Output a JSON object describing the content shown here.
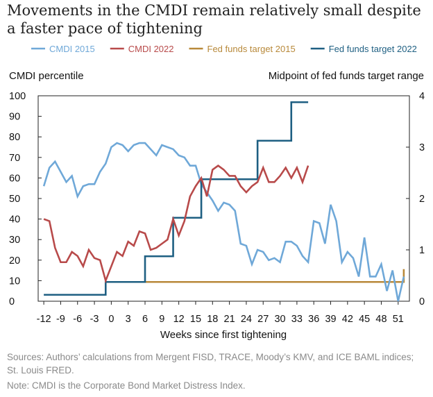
{
  "title": "Movements in the CMDI remain relatively small despite a faster pace of tightening",
  "footer": {
    "sources": "Sources: Authors’ calculations from Mergent FISD, TRACE, Moody’s KMV, and ICE BAML indices; St. Louis FRED.",
    "note": "Note: CMDI is the Corporate Bond Market Distress Index."
  },
  "chart_data": {
    "type": "line",
    "title": "Movements in the CMDI remain relatively small despite a faster pace of tightening",
    "xlabel": "Weeks since first tightening",
    "ylabel_left": "CMDI percentile",
    "ylabel_right": "Midpoint of fed funds target range",
    "xlim": [
      -13,
      53
    ],
    "ylim_left": [
      0,
      100
    ],
    "ylim_right": [
      0,
      4
    ],
    "x_ticks": [
      -12,
      -9,
      -6,
      -3,
      0,
      3,
      6,
      9,
      12,
      15,
      18,
      21,
      24,
      27,
      30,
      33,
      36,
      39,
      42,
      45,
      48,
      51
    ],
    "y_ticks_left": [
      0,
      10,
      20,
      30,
      40,
      50,
      60,
      70,
      80,
      90,
      100
    ],
    "y_ticks_right": [
      0,
      1,
      2,
      3,
      4
    ],
    "grid": false,
    "legend_position": "top",
    "series": [
      {
        "name": "CMDI 2015",
        "axis": "left",
        "color": "#6fa8d8",
        "step": false,
        "x": [
          -12,
          -11,
          -10,
          -9,
          -8,
          -7,
          -6,
          -5,
          -4,
          -3,
          -2,
          -1,
          0,
          1,
          2,
          3,
          4,
          5,
          6,
          7,
          8,
          9,
          10,
          11,
          12,
          13,
          14,
          15,
          16,
          17,
          18,
          19,
          20,
          21,
          22,
          23,
          24,
          25,
          26,
          27,
          28,
          29,
          30,
          31,
          32,
          33,
          34,
          35,
          36,
          37,
          38,
          39,
          40,
          41,
          42,
          43,
          44,
          45,
          46,
          47,
          48,
          49,
          50,
          51,
          52
        ],
        "y": [
          56,
          65,
          68,
          63,
          58,
          61,
          51,
          56,
          57,
          57,
          63,
          67,
          75,
          77,
          76,
          73,
          76,
          77,
          77,
          74,
          71,
          76,
          75,
          74,
          71,
          70,
          66,
          66,
          57,
          53,
          49,
          44,
          48,
          47,
          44,
          28,
          27,
          18,
          25,
          24,
          20,
          21,
          19,
          29,
          29,
          27,
          22,
          19,
          39,
          38,
          28,
          47,
          39,
          19,
          24,
          21,
          12,
          31,
          12,
          12,
          18,
          5,
          15,
          0,
          12
        ]
      },
      {
        "name": "CMDI 2022",
        "axis": "left",
        "color": "#b84a4a",
        "step": false,
        "x": [
          -12,
          -11,
          -10,
          -9,
          -8,
          -7,
          -6,
          -5,
          -4,
          -3,
          -2,
          -1,
          0,
          1,
          2,
          3,
          4,
          5,
          6,
          7,
          8,
          9,
          10,
          11,
          12,
          13,
          14,
          15,
          16,
          17,
          18,
          19,
          20,
          21,
          22,
          23,
          24,
          25,
          26,
          27,
          28,
          29,
          30,
          31,
          32,
          33,
          34,
          35
        ],
        "y": [
          40,
          39,
          26,
          19,
          19,
          24,
          22,
          17,
          25,
          21,
          20,
          10,
          17,
          24,
          22,
          29,
          27,
          34,
          33,
          25,
          26,
          28,
          30,
          40,
          32,
          39,
          51,
          56,
          60,
          51,
          64,
          66,
          64,
          61,
          61,
          56,
          53,
          56,
          58,
          65,
          58,
          58,
          61,
          65,
          60,
          65,
          58,
          66
        ]
      },
      {
        "name": "Fed funds target 2015",
        "axis": "right",
        "color": "#b8893a",
        "step": true,
        "x": [
          0,
          52
        ],
        "y": [
          0.375,
          0.625
        ]
      },
      {
        "name": "Fed funds target 2022",
        "axis": "right",
        "color": "#1e5f82",
        "step": true,
        "x": [
          -12,
          -1,
          6,
          11,
          16,
          21,
          26,
          32,
          35
        ],
        "y": [
          0.125,
          0.375,
          0.875,
          1.625,
          2.375,
          2.375,
          3.125,
          3.875,
          3.875
        ]
      }
    ]
  }
}
